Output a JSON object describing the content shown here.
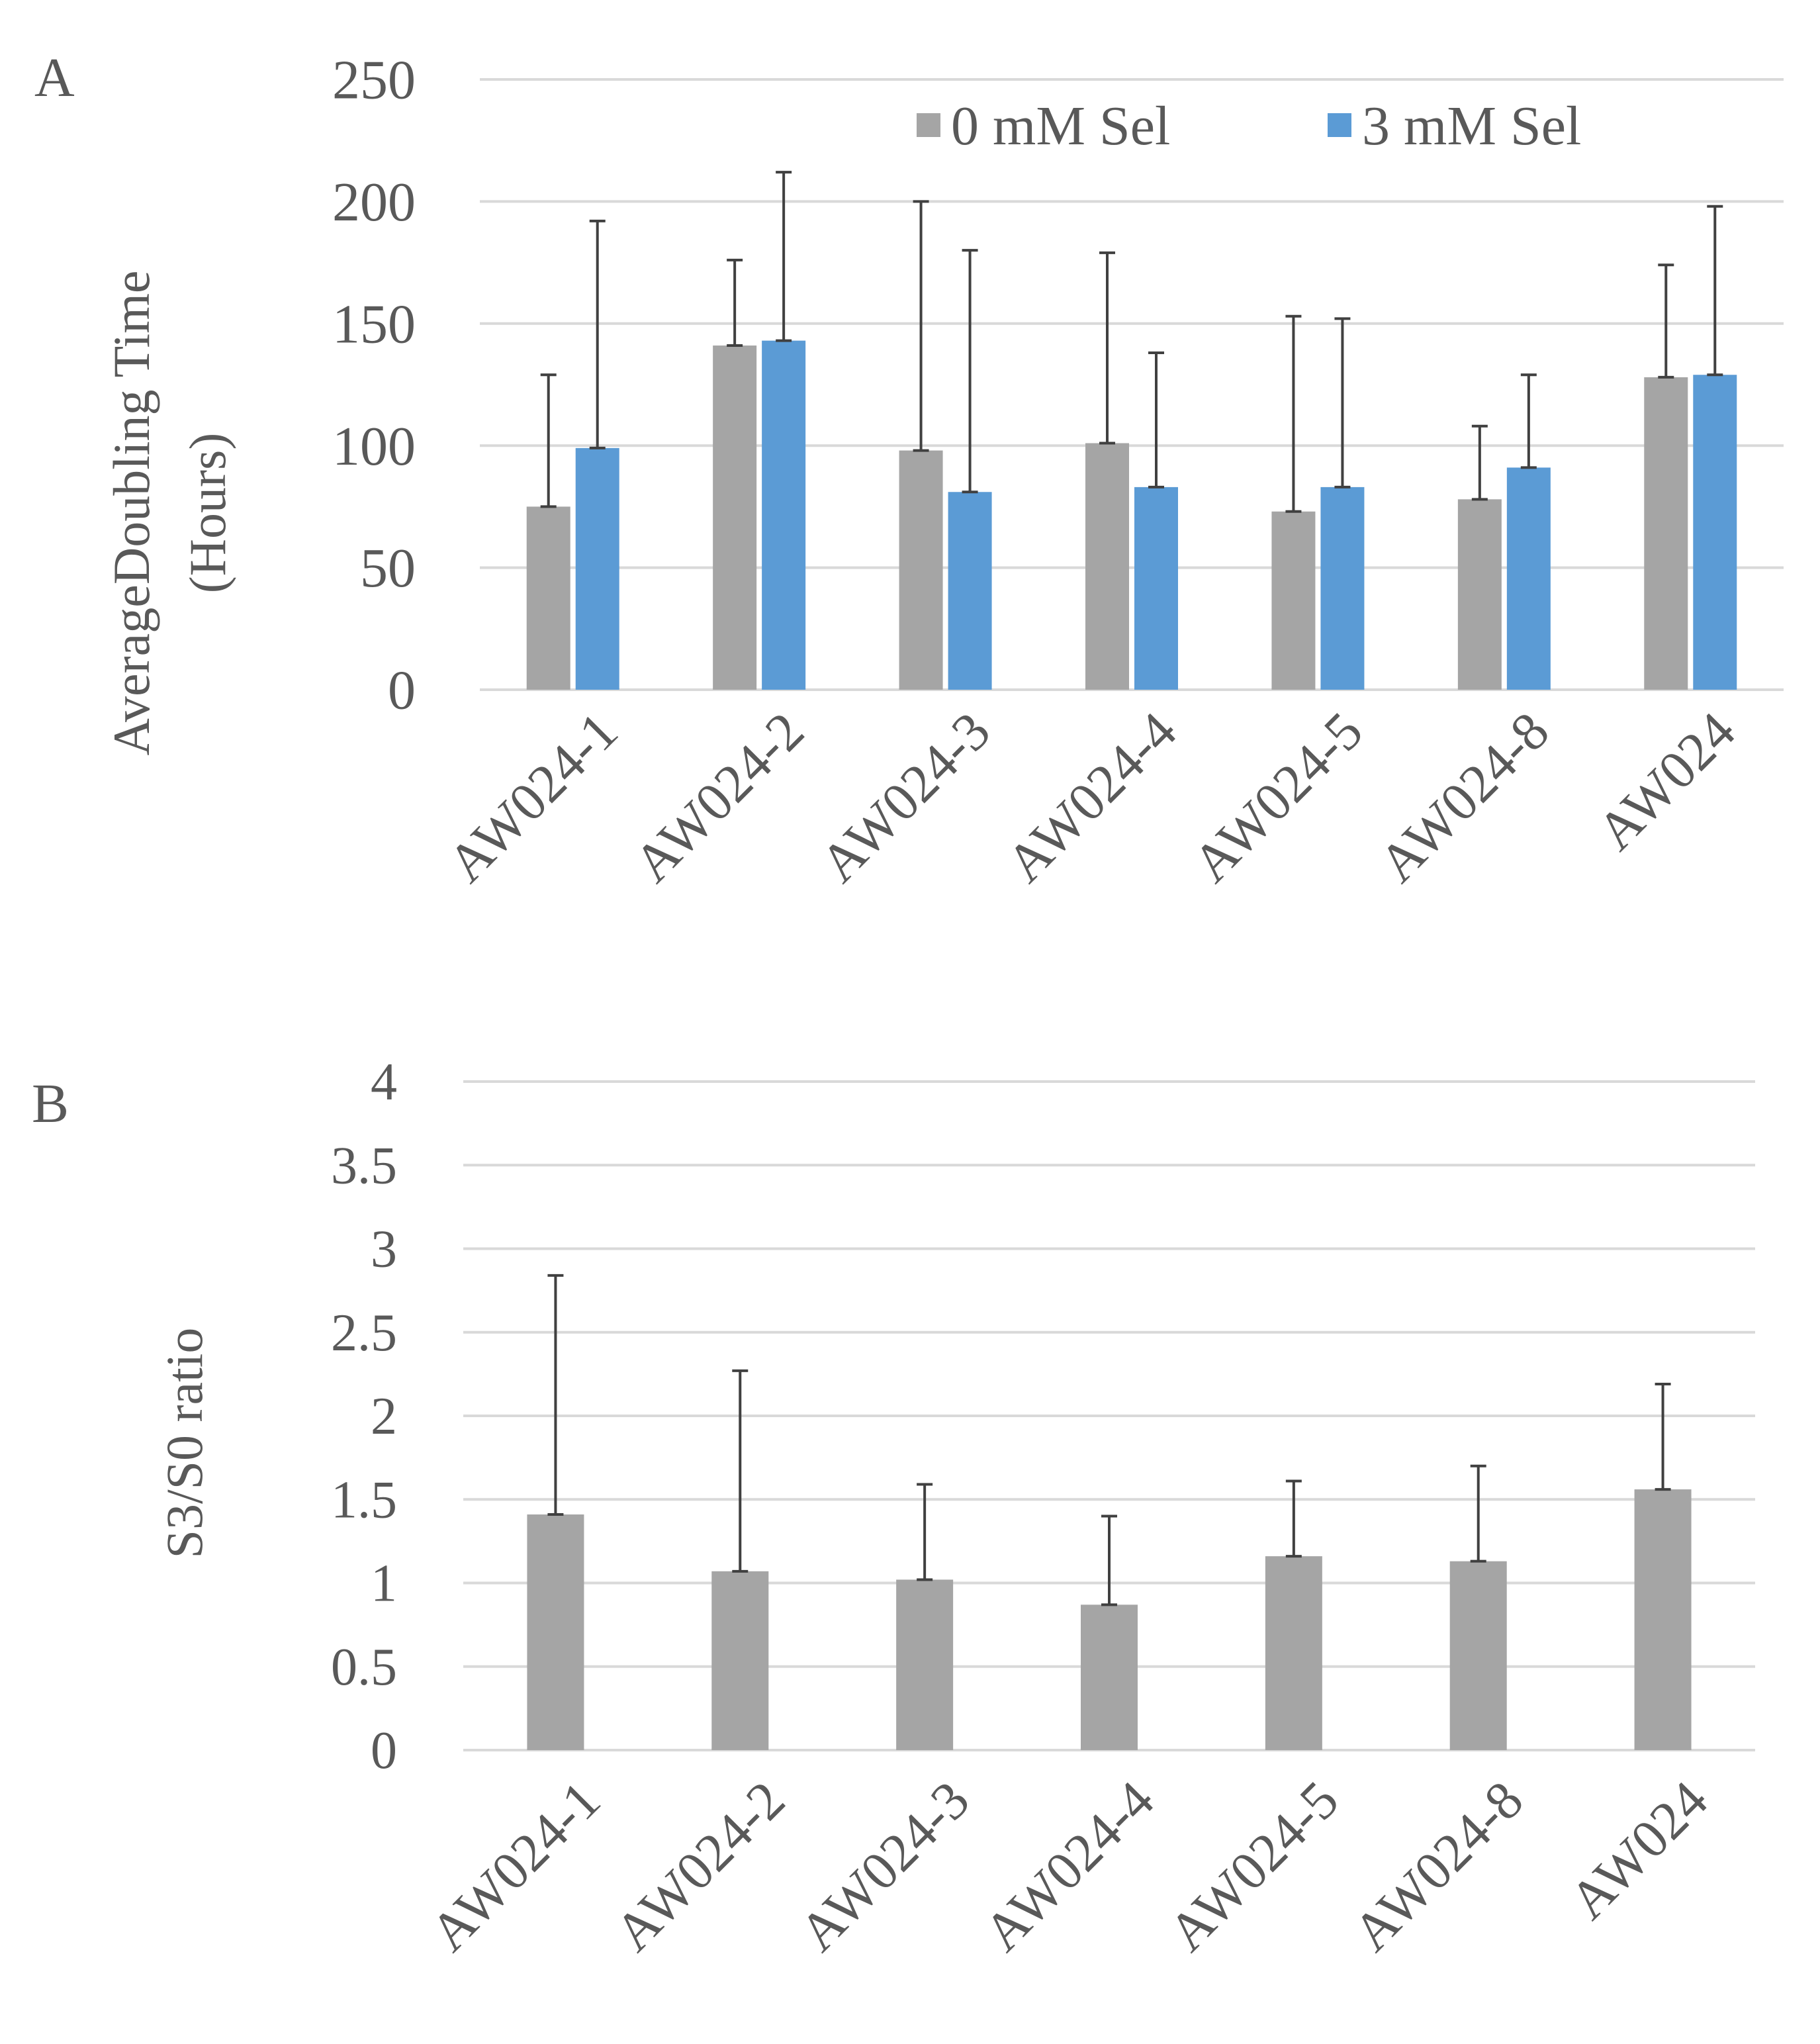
{
  "figure": {
    "panel_labels": [
      "A",
      "B"
    ]
  },
  "chart_data": [
    {
      "type": "bar",
      "panel": "A",
      "title": "",
      "xlabel": "",
      "ylabel_lines": [
        "AverageDoubling Time",
        "(Hours)"
      ],
      "categories": [
        "AW024-1",
        "AW024-2",
        "AW024-3",
        "AW024-4",
        "AW024-5",
        "AW024-8",
        "AW024"
      ],
      "series": [
        {
          "name": "0 mM Sel",
          "color": "#a5a5a5",
          "values": [
            75,
            141,
            98,
            101,
            73,
            78,
            128
          ],
          "error_upper": [
            129,
            176,
            200,
            179,
            153,
            108,
            174
          ]
        },
        {
          "name": "3 mM Sel",
          "color": "#5b9bd5",
          "values": [
            99,
            143,
            81,
            83,
            83,
            91,
            129
          ],
          "error_upper": [
            192,
            212,
            180,
            138,
            152,
            129,
            198
          ]
        }
      ],
      "ylim": [
        0,
        250
      ],
      "yticks": [
        "0",
        "50",
        "100",
        "150",
        "200",
        "250"
      ],
      "grid": true,
      "legend_position": "top-right",
      "error_bar_color": "#404040"
    },
    {
      "type": "bar",
      "panel": "B",
      "title": "",
      "xlabel": "",
      "ylabel": "S3/S0 ratio",
      "categories": [
        "AW024-1",
        "AW024-2",
        "AW024-3",
        "AW024-4",
        "AW024-5",
        "AW024-8",
        "AW024"
      ],
      "series": [
        {
          "color": "#a5a5a5",
          "values": [
            1.41,
            1.07,
            1.02,
            0.87,
            1.16,
            1.13,
            1.56
          ],
          "error_upper": [
            2.84,
            2.27,
            1.59,
            1.4,
            1.61,
            1.7,
            2.19
          ]
        }
      ],
      "ylim": [
        0,
        4
      ],
      "yticks": [
        "0",
        "0.5",
        "1",
        "1.5",
        "2",
        "2.5",
        "3",
        "3.5",
        "4"
      ],
      "grid": true,
      "legend_position": "none",
      "error_bar_color": "#404040"
    }
  ]
}
